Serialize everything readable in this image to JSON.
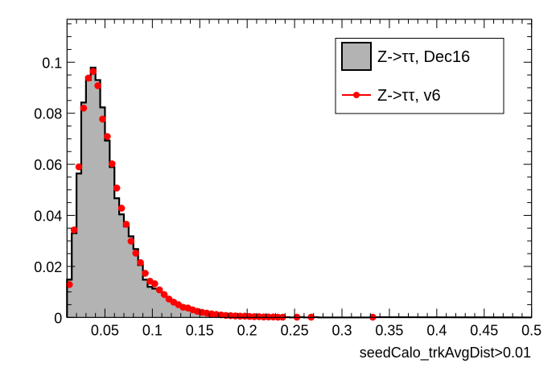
{
  "chart_data": {
    "type": "bar",
    "title": "",
    "xlabel": "seedCalo_trkAvgDist>0.01",
    "ylabel": "",
    "xlim": [
      0.01,
      0.5
    ],
    "ylim": [
      0,
      0.1168
    ],
    "grid": false,
    "legend_placement": "top-right",
    "x_tick_labels": [
      "0.05",
      "0.1",
      "0.15",
      "0.2",
      "0.25",
      "0.3",
      "0.35",
      "0.4",
      "0.45",
      "0.5"
    ],
    "x_ticks": [
      0.05,
      0.1,
      0.15,
      0.2,
      0.25,
      0.3,
      0.35,
      0.4,
      0.45,
      0.5
    ],
    "y_tick_labels": [
      "0",
      "0.02",
      "0.04",
      "0.06",
      "0.08",
      "0.1"
    ],
    "y_ticks": [
      0,
      0.02,
      0.04,
      0.06,
      0.08,
      0.1
    ],
    "bin_start": 0.01,
    "bin_width": 0.005,
    "series": [
      {
        "name": "Z->ττ, Dec16",
        "kind": "histogram",
        "fill_color": "#b3b3b3",
        "line_color": "#000000",
        "values": [
          0.0148,
          0.033,
          0.0564,
          0.0842,
          0.093,
          0.0979,
          0.093,
          0.0823,
          0.0693,
          0.0589,
          0.0467,
          0.0404,
          0.0357,
          0.0318,
          0.0268,
          0.0205,
          0.0148,
          0.012,
          0.0113,
          0.0105,
          0.0088,
          0.0075,
          0.0062,
          0.005,
          0.0041,
          0.0036,
          0.0031,
          0.0025,
          0.0021,
          0.0017,
          0.0014,
          0.0012,
          0.001,
          0.0009,
          0.0007,
          0.0006,
          0.0005,
          0.0004,
          0.0004,
          0.0003,
          0.0003,
          0.0002,
          0.0002,
          0.0002,
          0.0001,
          0.0001,
          0.0001,
          0.0,
          0.0,
          0.0001,
          0.0,
          0.0,
          0.0001,
          0.0,
          0.0,
          0.0,
          0.0,
          0.0,
          0.0,
          0.0,
          0.0,
          0.0,
          0.0,
          0.0,
          0.0,
          0.0001
        ]
      },
      {
        "name": "Z->ττ, v6",
        "kind": "points",
        "color": "#ff0000",
        "x": [
          0.0125,
          0.0175,
          0.0225,
          0.0275,
          0.0325,
          0.0375,
          0.0425,
          0.0475,
          0.0525,
          0.0575,
          0.0625,
          0.0675,
          0.0725,
          0.0775,
          0.0825,
          0.0875,
          0.0925,
          0.0975,
          0.1025,
          0.1075,
          0.1125,
          0.1175,
          0.1225,
          0.1275,
          0.1325,
          0.1375,
          0.1425,
          0.1475,
          0.1525,
          0.1575,
          0.1625,
          0.1675,
          0.1725,
          0.1775,
          0.1825,
          0.1875,
          0.1925,
          0.1975,
          0.2025,
          0.2075,
          0.2125,
          0.2175,
          0.2225,
          0.2275,
          0.2325,
          0.2375,
          0.2525,
          0.2675,
          0.3325
        ],
        "y": [
          0.0129,
          0.0343,
          0.059,
          0.082,
          0.0938,
          0.0964,
          0.0908,
          0.0777,
          0.0709,
          0.0602,
          0.0507,
          0.0428,
          0.0365,
          0.0299,
          0.0252,
          0.0215,
          0.0173,
          0.0142,
          0.0132,
          0.0108,
          0.009,
          0.0072,
          0.006,
          0.005,
          0.004,
          0.0037,
          0.003,
          0.0024,
          0.002,
          0.0017,
          0.0014,
          0.0012,
          0.001,
          0.0008,
          0.0007,
          0.0006,
          0.0005,
          0.0005,
          0.0004,
          0.0003,
          0.0003,
          0.0002,
          0.0002,
          0.0002,
          0.0001,
          0.0001,
          0.0001,
          0.0001,
          0.0001
        ]
      }
    ]
  },
  "legend": {
    "entries": [
      {
        "label": "Z->ττ, Dec16"
      },
      {
        "label": "Z->ττ, v6"
      }
    ]
  }
}
